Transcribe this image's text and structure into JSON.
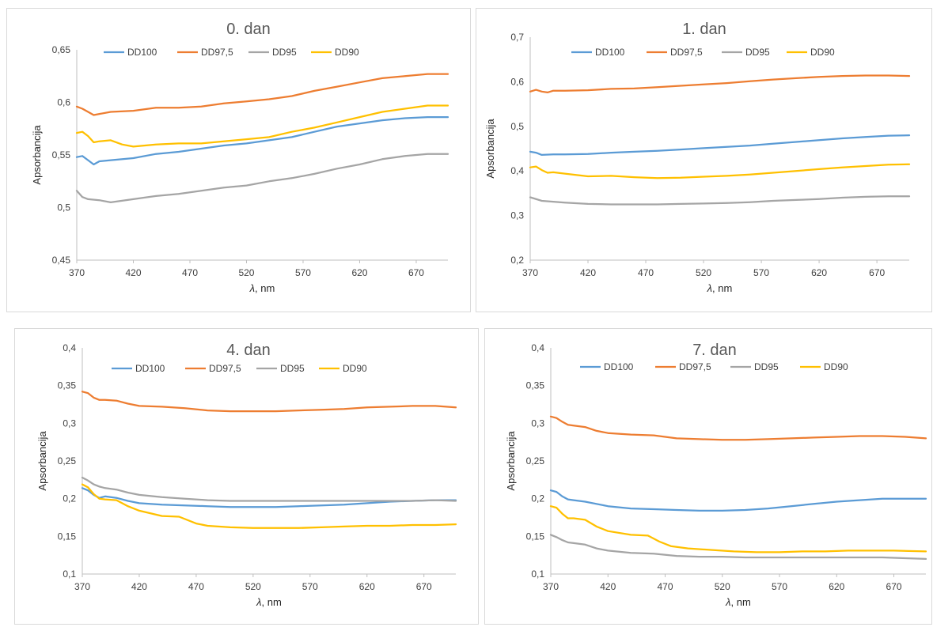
{
  "chart_data": [
    {
      "type": "line",
      "title": "0. dan",
      "xlabel_italic": "λ",
      "xlabel_rest": ", nm",
      "ylabel": "Apsorbancija",
      "xlim": [
        370,
        698
      ],
      "ylim": [
        0.45,
        0.65
      ],
      "xticks": [
        370,
        420,
        470,
        520,
        570,
        620,
        670
      ],
      "xtick_labels": [
        "370",
        "420",
        "470",
        "520",
        "570",
        "620",
        "670"
      ],
      "yticks": [
        0.45,
        0.5,
        0.55,
        0.6,
        0.65
      ],
      "ytick_labels": [
        "0,45",
        "0,5",
        "0,55",
        "0,6",
        "0,65"
      ],
      "legend_position": "top",
      "series": [
        {
          "name": "DD100",
          "color": "#5B9BD5",
          "x": [
            370,
            375,
            380,
            385,
            390,
            400,
            420,
            440,
            460,
            480,
            500,
            520,
            540,
            560,
            580,
            600,
            620,
            640,
            660,
            680,
            698
          ],
          "y": [
            0.548,
            0.549,
            0.545,
            0.541,
            0.544,
            0.545,
            0.547,
            0.551,
            0.553,
            0.556,
            0.559,
            0.561,
            0.564,
            0.567,
            0.572,
            0.577,
            0.58,
            0.583,
            0.585,
            0.586,
            0.586
          ]
        },
        {
          "name": "DD97,5",
          "color": "#ED7D31",
          "x": [
            370,
            375,
            380,
            385,
            390,
            400,
            420,
            440,
            460,
            480,
            500,
            520,
            540,
            560,
            580,
            600,
            620,
            640,
            660,
            680,
            698
          ],
          "y": [
            0.596,
            0.594,
            0.591,
            0.588,
            0.589,
            0.591,
            0.592,
            0.595,
            0.595,
            0.596,
            0.599,
            0.601,
            0.603,
            0.606,
            0.611,
            0.615,
            0.619,
            0.623,
            0.625,
            0.627,
            0.627
          ]
        },
        {
          "name": "DD95",
          "color": "#A5A5A5",
          "x": [
            370,
            375,
            380,
            390,
            400,
            420,
            440,
            460,
            480,
            500,
            520,
            540,
            560,
            580,
            600,
            620,
            640,
            660,
            680,
            698
          ],
          "y": [
            0.516,
            0.51,
            0.508,
            0.507,
            0.505,
            0.508,
            0.511,
            0.513,
            0.516,
            0.519,
            0.521,
            0.525,
            0.528,
            0.532,
            0.537,
            0.541,
            0.546,
            0.549,
            0.551,
            0.551
          ]
        },
        {
          "name": "DD90",
          "color": "#FFC000",
          "x": [
            370,
            375,
            380,
            385,
            390,
            400,
            410,
            420,
            440,
            460,
            480,
            500,
            520,
            540,
            560,
            580,
            600,
            620,
            640,
            660,
            680,
            698
          ],
          "y": [
            0.571,
            0.572,
            0.568,
            0.562,
            0.563,
            0.564,
            0.56,
            0.558,
            0.56,
            0.561,
            0.561,
            0.563,
            0.565,
            0.567,
            0.572,
            0.576,
            0.581,
            0.586,
            0.591,
            0.594,
            0.597,
            0.597
          ]
        }
      ]
    },
    {
      "type": "line",
      "title": "1. dan",
      "xlabel_italic": "λ",
      "xlabel_rest": ", nm",
      "ylabel": "Apsorbancija",
      "xlim": [
        370,
        698
      ],
      "ylim": [
        0.2,
        0.7
      ],
      "xticks": [
        370,
        420,
        470,
        520,
        570,
        620,
        670
      ],
      "xtick_labels": [
        "370",
        "420",
        "470",
        "520",
        "570",
        "620",
        "670"
      ],
      "yticks": [
        0.2,
        0.3,
        0.4,
        0.5,
        0.6,
        0.7
      ],
      "ytick_labels": [
        "0,2",
        "0,3",
        "0,4",
        "0,5",
        "0,6",
        "0,7"
      ],
      "legend_position": "top",
      "series": [
        {
          "name": "DD100",
          "color": "#5B9BD5",
          "x": [
            370,
            375,
            380,
            390,
            400,
            420,
            440,
            460,
            480,
            500,
            520,
            540,
            560,
            580,
            600,
            620,
            640,
            660,
            680,
            698
          ],
          "y": [
            0.443,
            0.441,
            0.436,
            0.437,
            0.437,
            0.438,
            0.441,
            0.443,
            0.445,
            0.448,
            0.451,
            0.454,
            0.457,
            0.461,
            0.465,
            0.469,
            0.473,
            0.476,
            0.479,
            0.48
          ]
        },
        {
          "name": "DD97,5",
          "color": "#ED7D31",
          "x": [
            370,
            375,
            380,
            385,
            390,
            400,
            420,
            440,
            460,
            480,
            500,
            520,
            540,
            560,
            580,
            600,
            620,
            640,
            660,
            680,
            698
          ],
          "y": [
            0.578,
            0.582,
            0.578,
            0.576,
            0.58,
            0.58,
            0.581,
            0.584,
            0.585,
            0.588,
            0.591,
            0.594,
            0.597,
            0.601,
            0.605,
            0.608,
            0.611,
            0.613,
            0.614,
            0.614,
            0.613
          ]
        },
        {
          "name": "DD95",
          "color": "#A5A5A5",
          "x": [
            370,
            380,
            390,
            400,
            420,
            440,
            460,
            480,
            500,
            520,
            540,
            560,
            580,
            600,
            620,
            640,
            660,
            680,
            698
          ],
          "y": [
            0.341,
            0.333,
            0.331,
            0.329,
            0.326,
            0.325,
            0.325,
            0.325,
            0.326,
            0.327,
            0.328,
            0.33,
            0.333,
            0.335,
            0.337,
            0.34,
            0.342,
            0.343,
            0.343
          ]
        },
        {
          "name": "DD90",
          "color": "#FFC000",
          "x": [
            370,
            375,
            380,
            385,
            390,
            400,
            420,
            440,
            460,
            480,
            500,
            520,
            540,
            560,
            580,
            600,
            620,
            640,
            660,
            680,
            698
          ],
          "y": [
            0.408,
            0.41,
            0.402,
            0.396,
            0.397,
            0.394,
            0.388,
            0.389,
            0.386,
            0.384,
            0.385,
            0.387,
            0.389,
            0.392,
            0.396,
            0.4,
            0.404,
            0.408,
            0.411,
            0.414,
            0.415
          ]
        }
      ]
    },
    {
      "type": "line",
      "title": "4. dan",
      "xlabel_italic": "λ",
      "xlabel_rest": ", nm",
      "ylabel": "Apsorbancija",
      "xlim": [
        370,
        698
      ],
      "ylim": [
        0.1,
        0.4
      ],
      "xticks": [
        370,
        420,
        470,
        520,
        570,
        620,
        670
      ],
      "xtick_labels": [
        "370",
        "420",
        "470",
        "520",
        "570",
        "620",
        "670"
      ],
      "yticks": [
        0.1,
        0.15,
        0.2,
        0.25,
        0.3,
        0.35,
        0.4
      ],
      "ytick_labels": [
        "0,1",
        "0,15",
        "0,2",
        "0,25",
        "0,3",
        "0,35",
        "0,4"
      ],
      "legend_position": "top",
      "series": [
        {
          "name": "DD100",
          "color": "#5B9BD5",
          "x": [
            370,
            375,
            380,
            385,
            390,
            400,
            410,
            420,
            440,
            460,
            480,
            500,
            520,
            540,
            560,
            580,
            600,
            620,
            640,
            660,
            680,
            698
          ],
          "y": [
            0.214,
            0.211,
            0.205,
            0.201,
            0.203,
            0.201,
            0.197,
            0.194,
            0.192,
            0.191,
            0.19,
            0.189,
            0.189,
            0.189,
            0.19,
            0.191,
            0.192,
            0.194,
            0.196,
            0.197,
            0.198,
            0.198
          ]
        },
        {
          "name": "DD97,5",
          "color": "#ED7D31",
          "x": [
            370,
            375,
            380,
            385,
            390,
            400,
            410,
            420,
            440,
            460,
            480,
            500,
            520,
            540,
            560,
            580,
            600,
            620,
            640,
            660,
            680,
            698
          ],
          "y": [
            0.342,
            0.34,
            0.334,
            0.331,
            0.331,
            0.33,
            0.326,
            0.323,
            0.322,
            0.32,
            0.317,
            0.316,
            0.316,
            0.316,
            0.317,
            0.318,
            0.319,
            0.321,
            0.322,
            0.323,
            0.323,
            0.321
          ]
        },
        {
          "name": "DD95",
          "color": "#A5A5A5",
          "x": [
            370,
            375,
            380,
            385,
            390,
            400,
            410,
            420,
            440,
            460,
            480,
            500,
            520,
            540,
            560,
            580,
            600,
            620,
            640,
            660,
            680,
            698
          ],
          "y": [
            0.228,
            0.224,
            0.219,
            0.216,
            0.214,
            0.212,
            0.208,
            0.205,
            0.202,
            0.2,
            0.198,
            0.197,
            0.197,
            0.197,
            0.197,
            0.197,
            0.197,
            0.197,
            0.197,
            0.197,
            0.198,
            0.197
          ]
        },
        {
          "name": "DD90",
          "color": "#FFC000",
          "x": [
            370,
            375,
            380,
            385,
            390,
            400,
            410,
            420,
            440,
            455,
            470,
            480,
            500,
            520,
            540,
            560,
            580,
            600,
            620,
            640,
            660,
            680,
            698
          ],
          "y": [
            0.219,
            0.215,
            0.206,
            0.2,
            0.199,
            0.198,
            0.19,
            0.184,
            0.177,
            0.176,
            0.167,
            0.164,
            0.162,
            0.161,
            0.161,
            0.161,
            0.162,
            0.163,
            0.164,
            0.164,
            0.165,
            0.165,
            0.166
          ]
        }
      ]
    },
    {
      "type": "line",
      "title": "7. dan",
      "xlabel_italic": "λ",
      "xlabel_rest": ", nm",
      "ylabel": "Apsorbancija",
      "xlim": [
        370,
        698
      ],
      "ylim": [
        0.1,
        0.4
      ],
      "xticks": [
        370,
        420,
        470,
        520,
        570,
        620,
        670
      ],
      "xtick_labels": [
        "370",
        "420",
        "470",
        "520",
        "570",
        "620",
        "670"
      ],
      "yticks": [
        0.1,
        0.15,
        0.2,
        0.25,
        0.3,
        0.35,
        0.4
      ],
      "ytick_labels": [
        "0,1",
        "0,15",
        "0,2",
        "0,25",
        "0,3",
        "0,35",
        "0,4"
      ],
      "legend_position": "top",
      "series": [
        {
          "name": "DD100",
          "color": "#5B9BD5",
          "x": [
            370,
            375,
            380,
            385,
            390,
            400,
            420,
            440,
            460,
            480,
            500,
            520,
            540,
            560,
            580,
            600,
            620,
            640,
            660,
            680,
            698
          ],
          "y": [
            0.211,
            0.209,
            0.203,
            0.199,
            0.198,
            0.196,
            0.19,
            0.187,
            0.186,
            0.185,
            0.184,
            0.184,
            0.185,
            0.187,
            0.19,
            0.193,
            0.196,
            0.198,
            0.2,
            0.2,
            0.2
          ]
        },
        {
          "name": "DD97,5",
          "color": "#ED7D31",
          "x": [
            370,
            375,
            380,
            385,
            390,
            400,
            410,
            420,
            440,
            460,
            480,
            500,
            520,
            540,
            560,
            580,
            600,
            620,
            640,
            660,
            680,
            698
          ],
          "y": [
            0.309,
            0.307,
            0.302,
            0.298,
            0.297,
            0.295,
            0.29,
            0.287,
            0.285,
            0.284,
            0.28,
            0.279,
            0.278,
            0.278,
            0.279,
            0.28,
            0.281,
            0.282,
            0.283,
            0.283,
            0.282,
            0.28
          ]
        },
        {
          "name": "DD95",
          "color": "#A5A5A5",
          "x": [
            370,
            375,
            380,
            385,
            390,
            400,
            410,
            420,
            440,
            460,
            480,
            500,
            520,
            540,
            560,
            580,
            600,
            620,
            640,
            660,
            680,
            698
          ],
          "y": [
            0.152,
            0.149,
            0.145,
            0.142,
            0.141,
            0.139,
            0.134,
            0.131,
            0.128,
            0.127,
            0.124,
            0.123,
            0.123,
            0.122,
            0.122,
            0.122,
            0.122,
            0.122,
            0.122,
            0.122,
            0.121,
            0.12
          ]
        },
        {
          "name": "DD90",
          "color": "#FFC000",
          "x": [
            370,
            375,
            380,
            385,
            390,
            400,
            410,
            420,
            440,
            455,
            465,
            475,
            490,
            510,
            530,
            550,
            570,
            590,
            610,
            630,
            650,
            670,
            698
          ],
          "y": [
            0.19,
            0.188,
            0.18,
            0.174,
            0.174,
            0.172,
            0.163,
            0.157,
            0.152,
            0.151,
            0.143,
            0.137,
            0.134,
            0.132,
            0.13,
            0.129,
            0.129,
            0.13,
            0.13,
            0.131,
            0.131,
            0.131,
            0.13
          ]
        }
      ]
    }
  ]
}
